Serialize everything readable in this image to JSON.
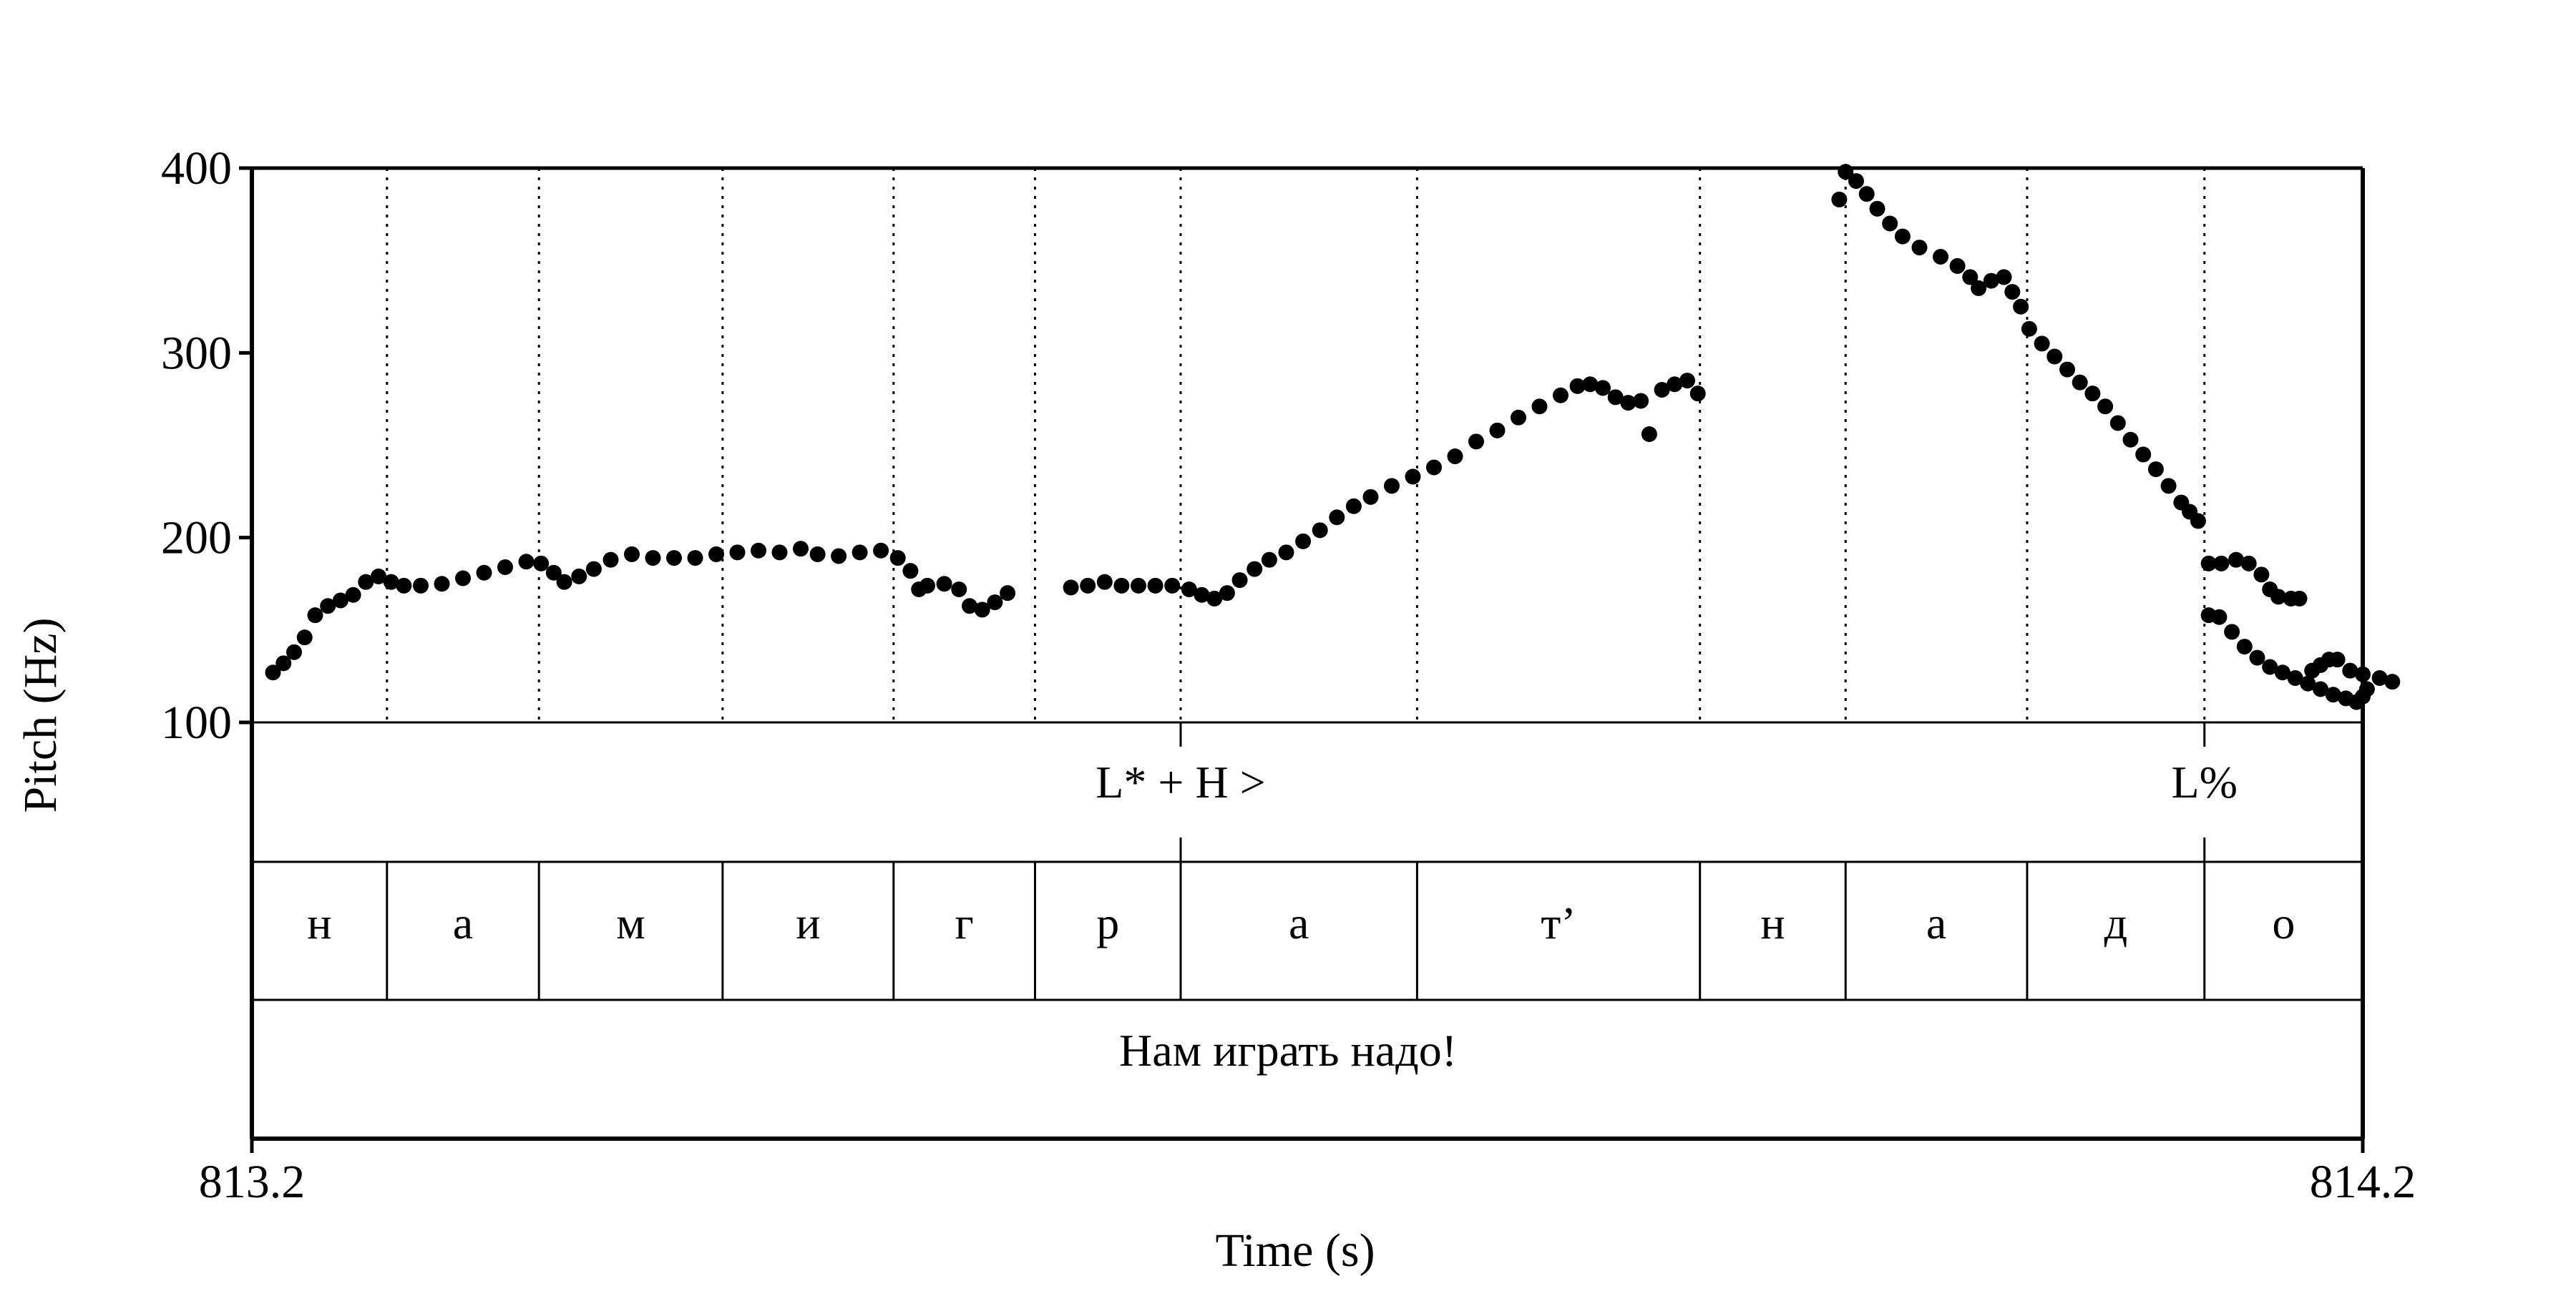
{
  "chart_data": {
    "type": "scatter",
    "xlabel": "Time (s)",
    "ylabel": "Pitch (Hz)",
    "xlim": [
      813.2,
      814.2
    ],
    "ylim": [
      100,
      400
    ],
    "x_tick_labels": [
      "813.2",
      "814.2"
    ],
    "y_ticks": [
      100,
      200,
      300,
      400
    ],
    "y_tick_labels": [
      "100",
      "200",
      "300",
      "400"
    ],
    "grid": false,
    "segment_boundaries": [
      813.264,
      813.336,
      813.423,
      813.504,
      813.571,
      813.64,
      813.752,
      813.886,
      813.955,
      814.041,
      814.125
    ],
    "tone_tier": [
      {
        "label": "L* + H >",
        "time": 813.64
      },
      {
        "label": "L%",
        "time": 814.125
      }
    ],
    "segment_tier": [
      "н",
      "а",
      "м",
      "и",
      "г",
      "р",
      "а",
      "т’",
      "н",
      "а",
      "д",
      "о"
    ],
    "sentence_tier": "Нам играть надо!",
    "series": [
      {
        "points": [
          [
            813.21,
            127
          ],
          [
            813.215,
            132
          ],
          [
            813.22,
            138
          ],
          [
            813.225,
            146
          ],
          [
            813.23,
            158
          ],
          [
            813.236,
            163
          ],
          [
            813.242,
            166
          ],
          [
            813.248,
            169
          ],
          [
            813.254,
            176
          ],
          [
            813.26,
            179
          ],
          [
            813.266,
            176
          ],
          [
            813.272,
            174
          ],
          [
            813.28,
            174
          ],
          [
            813.29,
            175
          ],
          [
            813.3,
            178
          ],
          [
            813.31,
            181
          ],
          [
            813.32,
            184
          ],
          [
            813.33,
            187
          ],
          [
            813.337,
            186
          ],
          [
            813.343,
            181
          ],
          [
            813.348,
            176
          ],
          [
            813.355,
            179
          ],
          [
            813.362,
            183
          ],
          [
            813.37,
            188
          ],
          [
            813.38,
            191
          ],
          [
            813.39,
            189
          ],
          [
            813.4,
            189
          ],
          [
            813.41,
            189
          ],
          [
            813.42,
            191
          ],
          [
            813.43,
            192
          ],
          [
            813.44,
            193
          ],
          [
            813.45,
            192
          ],
          [
            813.46,
            194
          ],
          [
            813.468,
            191
          ],
          [
            813.478,
            190
          ],
          [
            813.488,
            192
          ],
          [
            813.498,
            193
          ],
          [
            813.506,
            189
          ],
          [
            813.512,
            182
          ],
          [
            813.516,
            172
          ],
          [
            813.52,
            174
          ],
          [
            813.528,
            175
          ],
          [
            813.535,
            172
          ],
          [
            813.54,
            163
          ],
          [
            813.546,
            161
          ],
          [
            813.552,
            165
          ],
          [
            813.558,
            170
          ],
          [
            813.588,
            173
          ],
          [
            813.596,
            174
          ],
          [
            813.604,
            176
          ],
          [
            813.612,
            174
          ],
          [
            813.62,
            174
          ],
          [
            813.628,
            174
          ],
          [
            813.636,
            174
          ],
          [
            813.644,
            172
          ],
          [
            813.65,
            169
          ],
          [
            813.656,
            167
          ],
          [
            813.662,
            170
          ],
          [
            813.668,
            177
          ],
          [
            813.675,
            183
          ],
          [
            813.682,
            188
          ],
          [
            813.69,
            192
          ],
          [
            813.698,
            198
          ],
          [
            813.706,
            204
          ],
          [
            813.714,
            211
          ],
          [
            813.722,
            217
          ],
          [
            813.73,
            222
          ],
          [
            813.74,
            228
          ],
          [
            813.75,
            233
          ],
          [
            813.76,
            238
          ],
          [
            813.77,
            244
          ],
          [
            813.78,
            252
          ],
          [
            813.79,
            258
          ],
          [
            813.8,
            265
          ],
          [
            813.81,
            271
          ],
          [
            813.82,
            277
          ],
          [
            813.828,
            282
          ],
          [
            813.834,
            283
          ],
          [
            813.84,
            281
          ],
          [
            813.846,
            276
          ],
          [
            813.852,
            273
          ],
          [
            813.858,
            274
          ],
          [
            813.862,
            256
          ],
          [
            813.868,
            280
          ],
          [
            813.874,
            283
          ],
          [
            813.88,
            285
          ],
          [
            813.885,
            278
          ],
          [
            813.952,
            383
          ],
          [
            813.955,
            398
          ],
          [
            813.96,
            393
          ],
          [
            813.965,
            386
          ],
          [
            813.97,
            378
          ],
          [
            813.976,
            370
          ],
          [
            813.982,
            363
          ],
          [
            813.99,
            357
          ],
          [
            814.0,
            352
          ],
          [
            814.008,
            347
          ],
          [
            814.014,
            341
          ],
          [
            814.018,
            335
          ],
          [
            814.024,
            339
          ],
          [
            814.03,
            341
          ],
          [
            814.034,
            333
          ],
          [
            814.038,
            325
          ],
          [
            814.042,
            313
          ],
          [
            814.048,
            305
          ],
          [
            814.054,
            298
          ],
          [
            814.06,
            291
          ],
          [
            814.066,
            284
          ],
          [
            814.072,
            278
          ],
          [
            814.078,
            271
          ],
          [
            814.084,
            262
          ],
          [
            814.09,
            253
          ],
          [
            814.096,
            245
          ],
          [
            814.102,
            237
          ],
          [
            814.108,
            228
          ],
          [
            814.114,
            219
          ],
          [
            814.118,
            214
          ],
          [
            814.122,
            209
          ],
          [
            814.127,
            186
          ],
          [
            814.133,
            186
          ],
          [
            814.14,
            188
          ],
          [
            814.146,
            186
          ],
          [
            814.152,
            180
          ],
          [
            814.156,
            172
          ],
          [
            814.16,
            168
          ],
          [
            814.166,
            167
          ],
          [
            814.17,
            167
          ],
          [
            814.176,
            128
          ],
          [
            814.18,
            131
          ],
          [
            814.184,
            134
          ],
          [
            814.188,
            134
          ],
          [
            814.194,
            128
          ],
          [
            814.2,
            126
          ],
          [
            814.208,
            124
          ],
          [
            814.214,
            122
          ],
          [
            814.127,
            158
          ],
          [
            814.132,
            157
          ],
          [
            814.138,
            149
          ],
          [
            814.144,
            141
          ],
          [
            814.15,
            135
          ],
          [
            814.156,
            130
          ],
          [
            814.162,
            127
          ],
          [
            814.168,
            124
          ],
          [
            814.174,
            121
          ],
          [
            814.18,
            118
          ],
          [
            814.186,
            115
          ],
          [
            814.192,
            113
          ],
          [
            814.197,
            111
          ],
          [
            814.2,
            114
          ],
          [
            814.202,
            118
          ]
        ]
      }
    ]
  }
}
